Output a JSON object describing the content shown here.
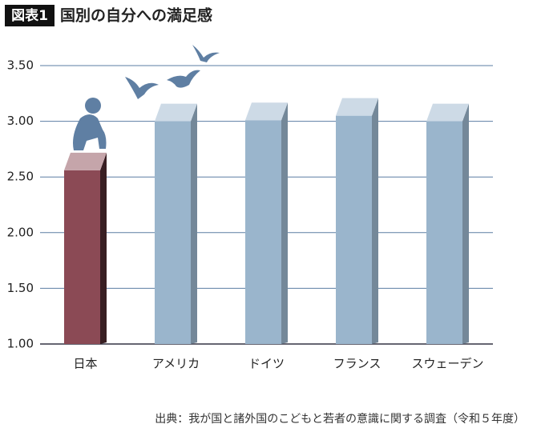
{
  "chart_data": {
    "type": "bar3d",
    "figure_label": "図表1",
    "title": "国別の自分への満足感",
    "source": "出典：我が国と諸外国のこどもと若者の意識に関する調査（令和５年度）",
    "categories": [
      "日本",
      "アメリカ",
      "ドイツ",
      "フランス",
      "スウェーデン"
    ],
    "values": [
      2.56,
      3.0,
      3.01,
      3.05,
      3.0
    ],
    "colors": [
      "#8b4a55",
      "#9ab5cc",
      "#9ab5cc",
      "#9ab5cc",
      "#9ab5cc"
    ],
    "ylim": [
      1,
      3.5
    ],
    "yticks": [
      {
        "value": 1,
        "label": "1.00"
      },
      {
        "value": 1.5,
        "label": "1.50"
      },
      {
        "value": 2,
        "label": "2.00"
      },
      {
        "value": 2.5,
        "label": "2.50"
      },
      {
        "value": 3,
        "label": "3.00"
      },
      {
        "value": 3.5,
        "label": "3.50"
      }
    ],
    "grid": true
  }
}
